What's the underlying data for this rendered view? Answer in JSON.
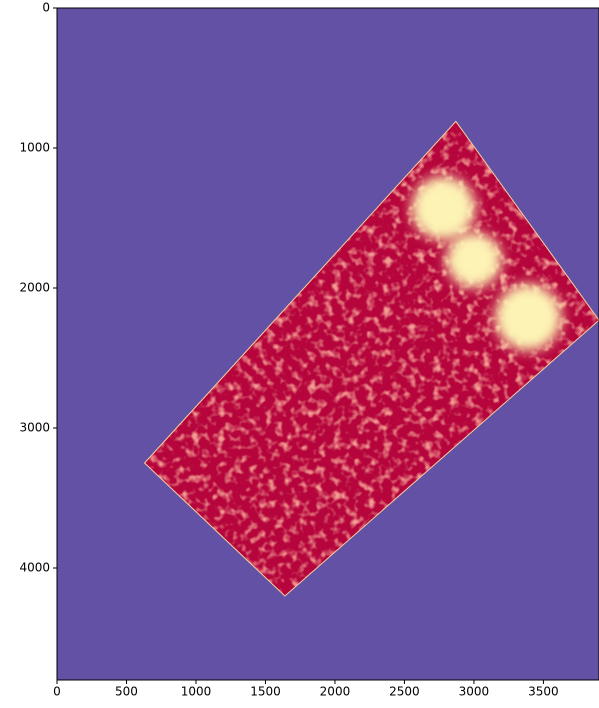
{
  "chart_data": {
    "type": "image",
    "xlim": [
      0,
      3900
    ],
    "ylim": [
      4800,
      0
    ],
    "xticks": [
      0,
      500,
      1000,
      1500,
      2000,
      2500,
      3000,
      3500
    ],
    "yticks": [
      0,
      1000,
      2000,
      3000,
      4000
    ],
    "background_color": "#6351a5",
    "polygon": {
      "color": "#b5053c",
      "x": [
        2870,
        3900,
        1640,
        630
      ],
      "y": [
        810,
        2230,
        4200,
        3250
      ]
    },
    "hotspots": {
      "color": "#fdf3b4",
      "x": [
        2780,
        3000,
        3390
      ],
      "y": [
        1430,
        1800,
        2210
      ],
      "r": [
        230,
        200,
        240
      ]
    }
  }
}
